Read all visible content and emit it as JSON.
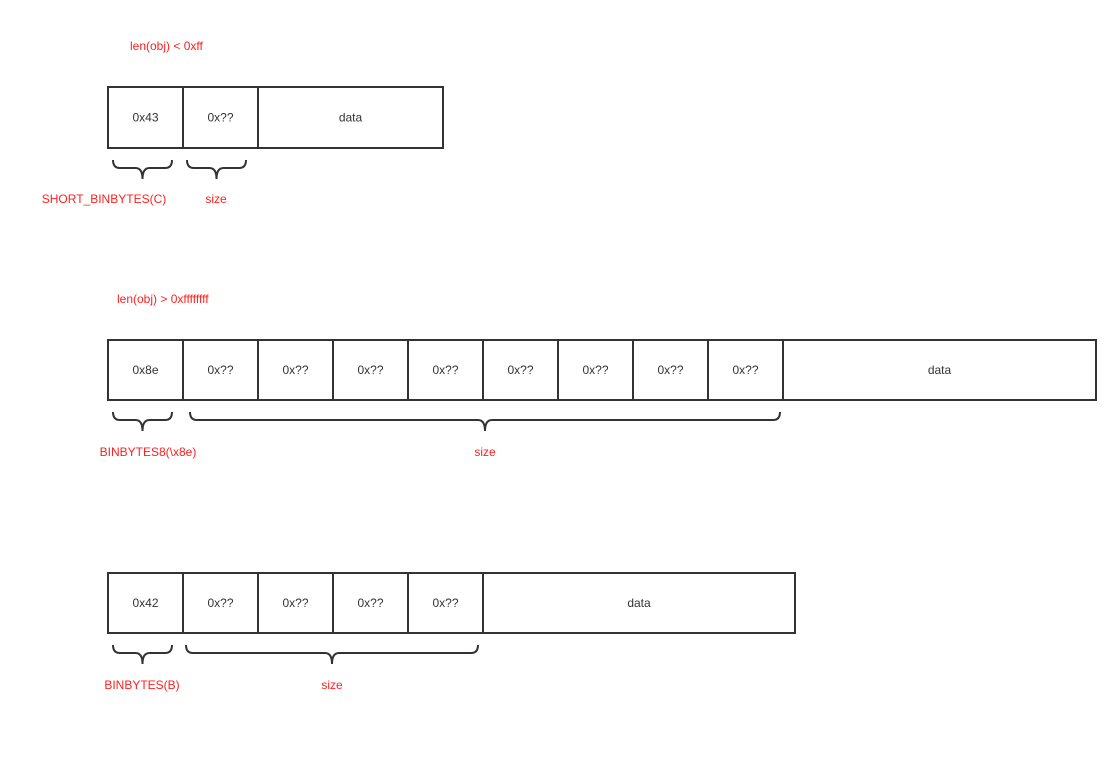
{
  "diagrams": [
    {
      "condition": "len(obj) < 0xff",
      "cells": [
        "0x43",
        "0x??",
        "data"
      ],
      "braces": [
        {
          "label": "SHORT_BINBYTES(C)"
        },
        {
          "label": "size"
        }
      ]
    },
    {
      "condition": "len(obj) > 0xffffffff",
      "cells": [
        "0x8e",
        "0x??",
        "0x??",
        "0x??",
        "0x??",
        "0x??",
        "0x??",
        "0x??",
        "0x??",
        "data"
      ],
      "braces": [
        {
          "label": "BINBYTES8(\\x8e)"
        },
        {
          "label": "size"
        }
      ]
    },
    {
      "condition": "",
      "cells": [
        "0x42",
        "0x??",
        "0x??",
        "0x??",
        "0x??",
        "data"
      ],
      "braces": [
        {
          "label": "BINBYTES(B)"
        },
        {
          "label": "size"
        }
      ]
    }
  ],
  "colors": {
    "annotation": "#ff2020",
    "stroke": "#333333"
  }
}
